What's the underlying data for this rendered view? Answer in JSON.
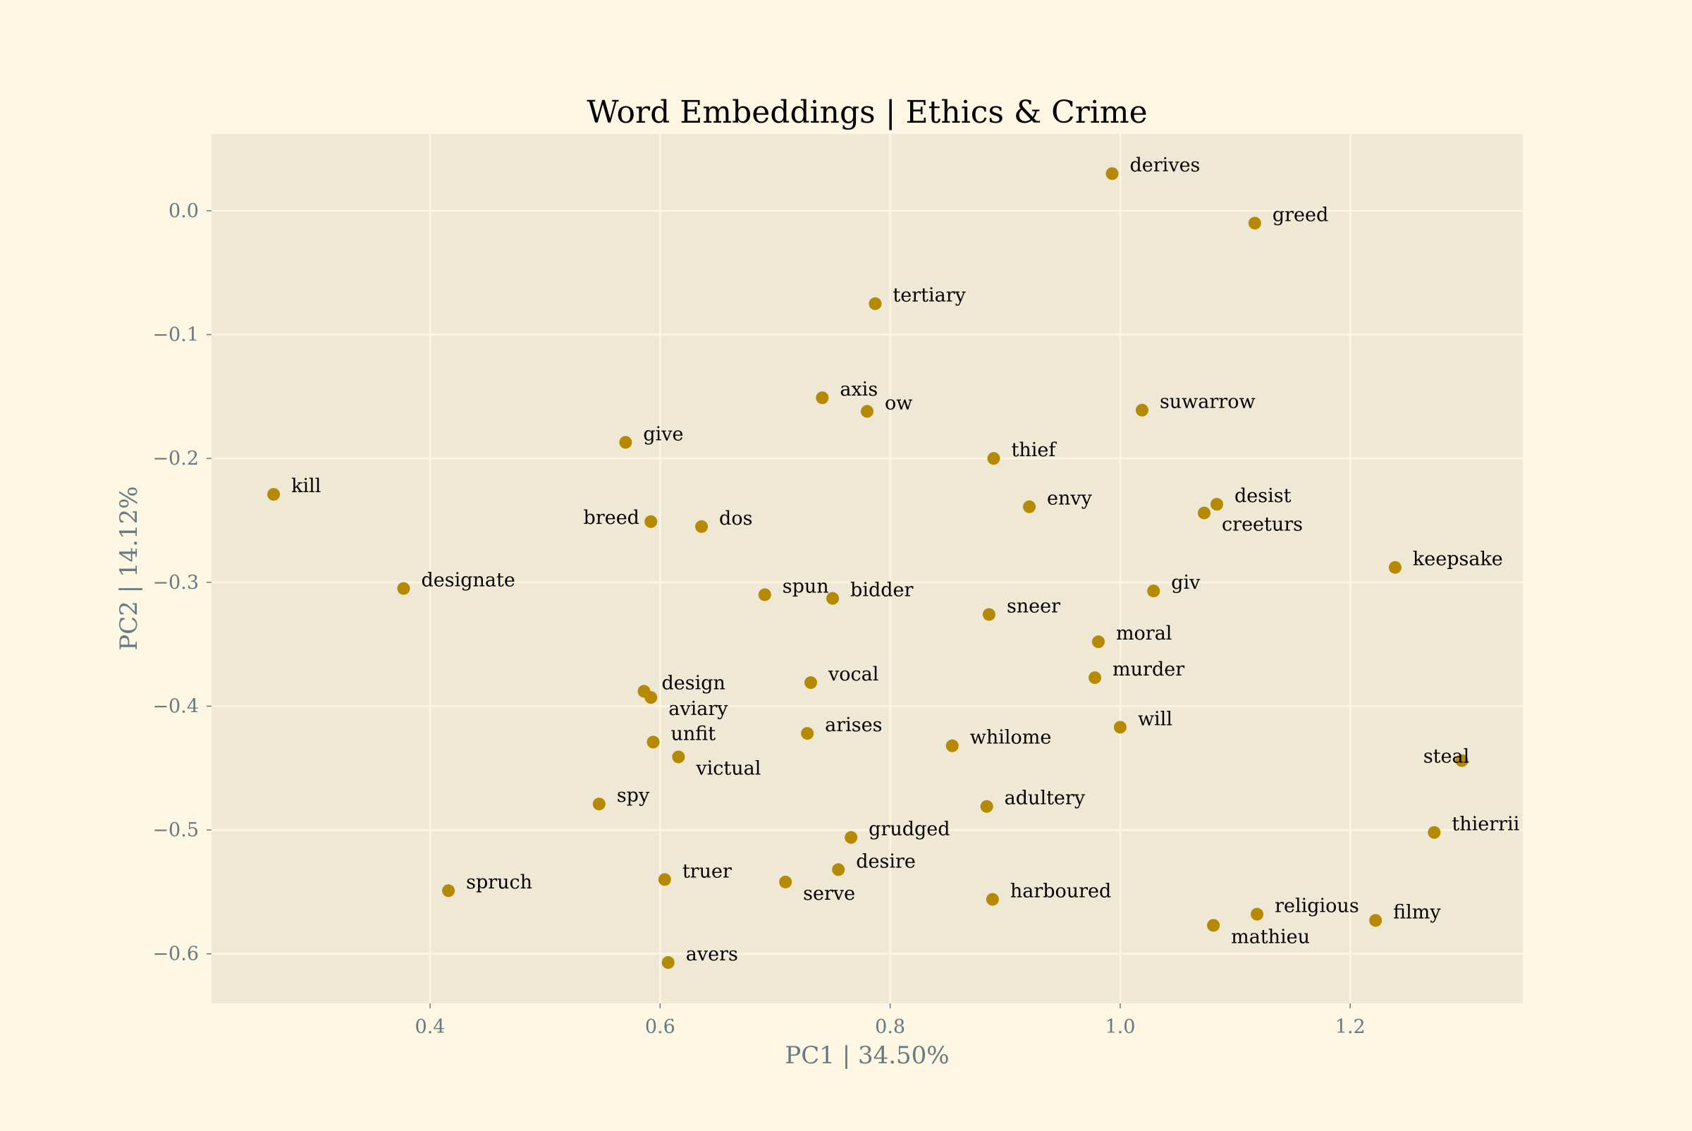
{
  "chart_data": {
    "type": "scatter",
    "title": "Word Embeddings | Ethics & Crime",
    "xlabel": "PC1 | 34.50%",
    "ylabel": "PC2 | 14.12%",
    "xlim": [
      0.21,
      1.35
    ],
    "ylim": [
      -0.64,
      0.062
    ],
    "xticks": [
      0.4,
      0.6,
      0.8,
      1.0,
      1.2
    ],
    "xtick_labels": [
      "0.4",
      "0.6",
      "0.8",
      "1.0",
      "1.2"
    ],
    "yticks": [
      0.0,
      -0.1,
      -0.2,
      -0.3,
      -0.4,
      -0.5,
      -0.6
    ],
    "ytick_labels": [
      "0.0",
      "−0.1",
      "−0.2",
      "−0.3",
      "−0.4",
      "−0.5",
      "−0.6"
    ],
    "grid": true,
    "colors": {
      "page_background": "#fdf6e3",
      "plot_background": "#eee8d5",
      "grid": "#fdf6e3",
      "point": "#b58900",
      "text": "#000000",
      "axis_text": "#657b83"
    },
    "points": [
      {
        "word": "derives",
        "x": 0.993,
        "y": 0.03
      },
      {
        "word": "greed",
        "x": 1.117,
        "y": -0.01
      },
      {
        "word": "tertiary",
        "x": 0.787,
        "y": -0.075
      },
      {
        "word": "axis",
        "x": 0.741,
        "y": -0.151
      },
      {
        "word": "ow",
        "x": 0.78,
        "y": -0.162
      },
      {
        "word": "suwarrow",
        "x": 1.019,
        "y": -0.161
      },
      {
        "word": "give",
        "x": 0.57,
        "y": -0.187
      },
      {
        "word": "thief",
        "x": 0.89,
        "y": -0.2
      },
      {
        "word": "kill",
        "x": 0.264,
        "y": -0.229
      },
      {
        "word": "envy",
        "x": 0.921,
        "y": -0.239
      },
      {
        "word": "desist",
        "x": 1.084,
        "y": -0.237
      },
      {
        "word": "creeturs",
        "x": 1.073,
        "y": -0.244
      },
      {
        "word": "breed",
        "x": 0.592,
        "y": -0.251
      },
      {
        "word": "dos",
        "x": 0.636,
        "y": -0.255
      },
      {
        "word": "keepsake",
        "x": 1.239,
        "y": -0.288
      },
      {
        "word": "designate",
        "x": 0.377,
        "y": -0.305
      },
      {
        "word": "spun",
        "x": 0.691,
        "y": -0.31
      },
      {
        "word": "bidder",
        "x": 0.75,
        "y": -0.313
      },
      {
        "word": "giv",
        "x": 1.029,
        "y": -0.307
      },
      {
        "word": "sneer",
        "x": 0.886,
        "y": -0.326
      },
      {
        "word": "moral",
        "x": 0.981,
        "y": -0.348
      },
      {
        "word": "murder",
        "x": 0.978,
        "y": -0.377
      },
      {
        "word": "vocal",
        "x": 0.731,
        "y": -0.381
      },
      {
        "word": "design",
        "x": 0.586,
        "y": -0.388
      },
      {
        "word": "aviary",
        "x": 0.592,
        "y": -0.393
      },
      {
        "word": "will",
        "x": 1.0,
        "y": -0.417
      },
      {
        "word": "arises",
        "x": 0.728,
        "y": -0.422
      },
      {
        "word": "unfit",
        "x": 0.594,
        "y": -0.429
      },
      {
        "word": "whilome",
        "x": 0.854,
        "y": -0.432
      },
      {
        "word": "victual",
        "x": 0.616,
        "y": -0.441
      },
      {
        "word": "steal",
        "x": 1.297,
        "y": -0.444
      },
      {
        "word": "spy",
        "x": 0.547,
        "y": -0.479
      },
      {
        "word": "adultery",
        "x": 0.884,
        "y": -0.481
      },
      {
        "word": "thierrii",
        "x": 1.273,
        "y": -0.502
      },
      {
        "word": "grudged",
        "x": 0.766,
        "y": -0.506
      },
      {
        "word": "desire",
        "x": 0.755,
        "y": -0.532
      },
      {
        "word": "truer",
        "x": 0.604,
        "y": -0.54
      },
      {
        "word": "serve",
        "x": 0.709,
        "y": -0.542
      },
      {
        "word": "spruch",
        "x": 0.416,
        "y": -0.549
      },
      {
        "word": "harboured",
        "x": 0.889,
        "y": -0.556
      },
      {
        "word": "religious",
        "x": 1.119,
        "y": -0.568
      },
      {
        "word": "filmy",
        "x": 1.222,
        "y": -0.573
      },
      {
        "word": "mathieu",
        "x": 1.081,
        "y": -0.577
      },
      {
        "word": "avers",
        "x": 0.607,
        "y": -0.607
      }
    ]
  }
}
